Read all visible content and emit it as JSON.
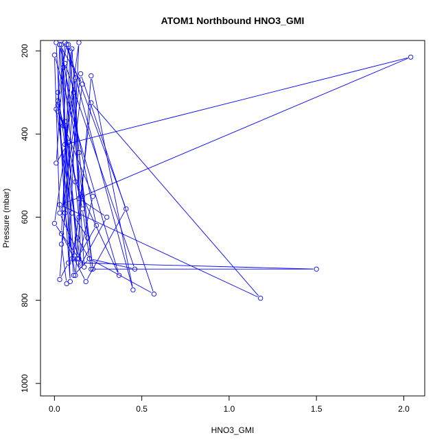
{
  "chart_data": {
    "type": "scatter",
    "title": "ATOM1 Northbound HNO3_GMI",
    "xlabel": "HNO3_GMI",
    "ylabel": "Pressure (mbar)",
    "xlim": [
      -0.08,
      2.12
    ],
    "ylim": [
      1030,
      175
    ],
    "y_reversed": true,
    "x_ticks": [
      0.0,
      0.5,
      1.0,
      1.5,
      2.0
    ],
    "x_tick_labels": [
      "0.0",
      "0.5",
      "1.0",
      "1.5",
      "2.0"
    ],
    "y_ticks": [
      200,
      400,
      600,
      800,
      1000
    ],
    "y_tick_labels": [
      "200",
      "400",
      "600",
      "800",
      "1000"
    ],
    "grid": false,
    "marker": "open-circle",
    "connected": true,
    "color": "#0000ff",
    "series": [
      {
        "x": [
          0.01,
          0.06,
          0.12,
          0.21,
          0.45,
          0.07,
          0.02,
          0.15,
          0.3,
          0.14,
          0.09,
          0.04,
          0.18,
          0.41,
          0.06,
          0.01,
          0.08,
          0.13,
          0.24,
          0.03,
          0.02,
          0.11,
          0.2,
          0.57,
          0.15,
          0.05,
          0.1,
          0.14,
          0.22,
          0.04,
          0.06,
          0.12,
          0.37,
          0.0,
          0.03,
          0.17,
          0.11,
          0.03,
          0.08,
          0.14,
          0.06,
          2.04,
          0.16,
          0.03,
          1.18,
          0.21,
          0.11,
          0.06,
          0.13,
          0.2,
          0.46,
          0.06,
          0.01,
          0.1,
          0.19,
          0.08,
          0.05,
          0.02,
          0.22,
          0.14,
          0.0,
          0.12,
          0.15,
          1.5,
          0.21,
          0.16,
          0.02,
          0.09,
          0.05,
          0.14,
          0.1,
          0.03,
          0.16,
          0.04,
          0.07
        ],
        "y": [
          180,
          590,
          740,
          260,
          775,
          185,
          300,
          715,
          600,
          555,
          200,
          640,
          755,
          580,
          180,
          470,
          420,
          700,
          620,
          185,
          330,
          740,
          700,
          785,
          255,
          580,
          195,
          445,
          725,
          185,
          380,
          515,
          740,
          210,
          590,
          720,
          300,
          750,
          710,
          180,
          425,
          215,
          550,
          570,
          795,
          325,
          700,
          370,
          650,
          700,
          725,
          230,
          340,
          590,
          650,
          185,
          380,
          345,
          550,
          700,
          615,
          265,
          710,
          725,
          725,
          580,
          320,
          755,
          240,
          600,
          700,
          185,
          280,
          665,
          760
        ]
      }
    ]
  }
}
